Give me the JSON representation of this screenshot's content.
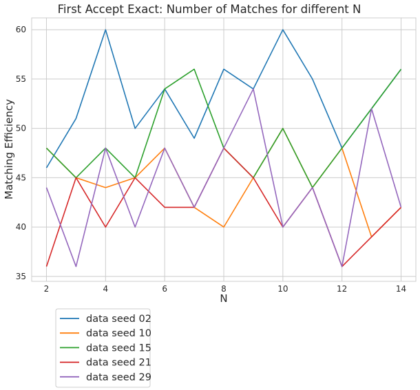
{
  "chart_data": {
    "type": "line",
    "title": "First Accept Exact: Number of Matches for different N",
    "xlabel": "N",
    "ylabel": "Matching Efficiency",
    "x": [
      2,
      3,
      4,
      5,
      6,
      7,
      8,
      9,
      10,
      11,
      12,
      13,
      14
    ],
    "xlim": [
      1.5,
      14.5
    ],
    "ylim": [
      34.5,
      61.2
    ],
    "xticks": [
      2,
      4,
      6,
      8,
      10,
      12,
      14
    ],
    "yticks": [
      35,
      40,
      45,
      50,
      55,
      60
    ],
    "grid": true,
    "legend_position": "below-left",
    "series": [
      {
        "name": "data seed 02",
        "color": "#1f77b4",
        "values": [
          46,
          51,
          60,
          50,
          54,
          49,
          56,
          54,
          60,
          55,
          48,
          52,
          56
        ]
      },
      {
        "name": "data seed 10",
        "color": "#ff7f0e",
        "values": [
          48,
          45,
          44,
          45,
          48,
          42,
          40,
          45,
          50,
          44,
          48,
          39,
          42
        ]
      },
      {
        "name": "data seed 15",
        "color": "#2ca02c",
        "values": [
          48,
          45,
          48,
          45,
          54,
          56,
          48,
          45,
          50,
          44,
          48,
          52,
          56
        ]
      },
      {
        "name": "data seed 21",
        "color": "#d62728",
        "values": [
          36,
          45,
          40,
          45,
          42,
          42,
          48,
          45,
          40,
          44,
          36,
          39,
          42
        ]
      },
      {
        "name": "data seed 29",
        "color": "#9467bd",
        "values": [
          44,
          36,
          48,
          40,
          48,
          42,
          48,
          54,
          40,
          44,
          36,
          52,
          42
        ]
      }
    ]
  }
}
